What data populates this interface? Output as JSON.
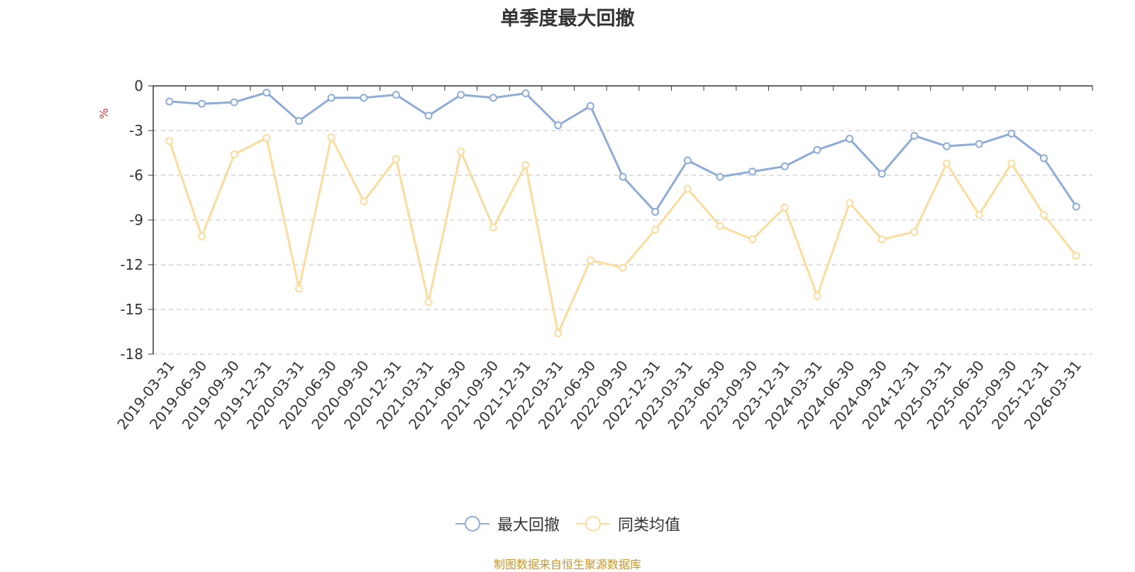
{
  "chart_data": {
    "type": "line",
    "title": "单季度最大回撤",
    "ylabel": "%",
    "xlabel": "",
    "ylim": [
      -18,
      0
    ],
    "yticks": [
      0,
      -3,
      -6,
      -9,
      -12,
      -15,
      -18
    ],
    "grid": true,
    "legend_position": "bottom-center",
    "categories": [
      "2019-03-31",
      "2019-06-30",
      "2019-09-30",
      "2019-12-31",
      "2020-03-31",
      "2020-06-30",
      "2020-09-30",
      "2020-12-31",
      "2021-03-31",
      "2021-06-30",
      "2021-09-30",
      "2021-12-31",
      "2022-03-31",
      "2022-06-30",
      "2022-09-30",
      "2022-12-31",
      "2023-03-31",
      "2023-06-30",
      "2023-09-30",
      "2023-12-31",
      "2024-03-31",
      "2024-06-30",
      "2024-09-30",
      "2024-12-31",
      "2025-03-31",
      "2025-06-30",
      "2025-09-30",
      "2025-12-31",
      "2026-03-31"
    ],
    "series": [
      {
        "name": "最大回撤",
        "color": "#8eacd8",
        "values": [
          -1.05,
          -1.2,
          -1.1,
          -0.45,
          -2.35,
          -0.8,
          -0.8,
          -0.6,
          -2.0,
          -0.6,
          -0.8,
          -0.5,
          -2.65,
          -1.35,
          -6.1,
          -8.45,
          -5.0,
          -6.1,
          -5.75,
          -5.4,
          -4.3,
          -3.55,
          -5.9,
          -3.35,
          -4.05,
          -3.9,
          -3.2,
          -4.85,
          -8.1
        ]
      },
      {
        "name": "同类均值",
        "color": "#fcdc9c",
        "values": [
          -3.7,
          -10.1,
          -4.6,
          -3.5,
          -13.6,
          -3.45,
          -7.75,
          -4.9,
          -14.5,
          -4.4,
          -9.5,
          -5.3,
          -16.6,
          -11.7,
          -12.2,
          -9.65,
          -6.9,
          -9.4,
          -10.3,
          -8.15,
          -14.1,
          -7.85,
          -10.3,
          -9.8,
          -5.2,
          -8.65,
          -5.2,
          -8.65,
          -11.4
        ]
      }
    ]
  },
  "source_note": "制图数据来自恒生聚源数据库"
}
